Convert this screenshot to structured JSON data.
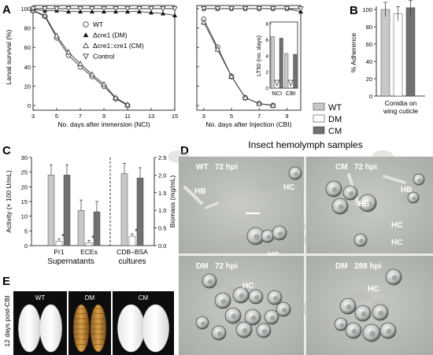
{
  "panels": {
    "A": {
      "letter": "A"
    },
    "B": {
      "letter": "B"
    },
    "C": {
      "letter": "C"
    },
    "D": {
      "letter": "D",
      "title": "Insect hemolymph  samples"
    },
    "E": {
      "letter": "E",
      "side_label": "12 days post-CBI"
    }
  },
  "legend_main": [
    {
      "marker": "circle-open",
      "label": "WT"
    },
    {
      "marker": "triangle-filled",
      "label": "Δcre1 (DM)"
    },
    {
      "marker": "triangle-open",
      "label": "Δcre1::cre1 (CM)"
    },
    {
      "marker": "triangle-down-open",
      "label": "Control"
    }
  ],
  "legend_bars": [
    {
      "label": "WT",
      "color": "#c8c8c8"
    },
    {
      "label": "DM",
      "color": "#ffffff"
    },
    {
      "label": "CM",
      "color": "#707070"
    }
  ],
  "chart_data": [
    {
      "id": "A-left",
      "type": "line",
      "ylabel": "Larval survival (%)",
      "xlabel": "No. days after immersion (NCI)",
      "ylim": [
        0,
        100
      ],
      "xlim": [
        3,
        15
      ],
      "xticks": [
        3,
        5,
        7,
        9,
        11,
        13,
        15
      ],
      "yticks": [
        0,
        20,
        40,
        60,
        80,
        100
      ],
      "series": [
        {
          "name": "WT",
          "marker": "circle-open",
          "x": [
            3,
            4,
            5,
            6,
            7,
            8,
            9,
            10,
            11
          ],
          "y": [
            98,
            92,
            70,
            52,
            40,
            30,
            20,
            7,
            0
          ]
        },
        {
          "name": "Δcre1 (DM)",
          "marker": "triangle-filled",
          "x": [
            3,
            4,
            5,
            6,
            7,
            8,
            9,
            10,
            11,
            12,
            13,
            14,
            15
          ],
          "y": [
            99,
            98,
            98,
            97,
            97,
            97,
            97,
            97,
            97,
            97,
            96,
            95,
            93
          ]
        },
        {
          "name": "Δcre1::cre1 (CM)",
          "marker": "triangle-open",
          "x": [
            3,
            4,
            5,
            6,
            7,
            8,
            9,
            10,
            11
          ],
          "y": [
            98,
            93,
            72,
            55,
            43,
            32,
            22,
            8,
            1
          ]
        },
        {
          "name": "Control",
          "marker": "triangle-down-open",
          "x": [
            3,
            4,
            5,
            6,
            7,
            8,
            9,
            10,
            11,
            12,
            13,
            14,
            15
          ],
          "y": [
            100,
            100,
            100,
            100,
            100,
            100,
            100,
            100,
            100,
            100,
            100,
            100,
            100
          ]
        }
      ]
    },
    {
      "id": "A-right",
      "type": "line",
      "xlabel": "No. days after Injection (CBI)",
      "ylim": [
        0,
        100
      ],
      "xlim": [
        2.5,
        10
      ],
      "xticks": [
        3,
        5,
        7,
        9
      ],
      "series": [
        {
          "name": "WT",
          "marker": "circle-open",
          "x": [
            3,
            4,
            5,
            6,
            7,
            8
          ],
          "y": [
            89,
            60,
            30,
            8,
            2,
            0
          ]
        },
        {
          "name": "Δcre1 (DM)",
          "marker": "triangle-filled",
          "x": [
            3,
            4,
            5,
            6,
            7,
            8,
            9,
            10
          ],
          "y": [
            100,
            100,
            100,
            100,
            100,
            100,
            100,
            97
          ]
        },
        {
          "name": "Δcre1::cre1 (CM)",
          "marker": "triangle-open",
          "x": [
            3,
            4,
            5,
            6,
            7,
            8
          ],
          "y": [
            86,
            58,
            30,
            8,
            2,
            0
          ]
        },
        {
          "name": "Control",
          "marker": "triangle-down-open",
          "x": [
            3,
            4,
            5,
            6,
            7,
            8,
            9,
            10
          ],
          "y": [
            100,
            100,
            100,
            100,
            100,
            100,
            100,
            100
          ]
        }
      ]
    },
    {
      "id": "A-inset",
      "type": "bar",
      "ylabel": "LT50 (no. days)",
      "ylim": [
        0,
        8
      ],
      "yticks": [
        0,
        2,
        4,
        6,
        8
      ],
      "categories": [
        "NCI",
        "CBI"
      ],
      "series": [
        {
          "name": "WT",
          "values": [
            6.4,
            4.3
          ]
        },
        {
          "name": "DM",
          "values": [
            null,
            null
          ],
          "note": "∇"
        },
        {
          "name": "CM",
          "values": [
            6.2,
            4.2
          ]
        }
      ]
    },
    {
      "id": "B",
      "type": "bar",
      "ylabel": "% Adherence",
      "xlabel": "Conidia on wing cuticle",
      "ylim": [
        0,
        100
      ],
      "yticks": [
        0,
        20,
        40,
        60,
        80,
        100
      ],
      "series": [
        {
          "name": "WT",
          "values": [
            100
          ]
        },
        {
          "name": "DM",
          "values": [
            95
          ]
        },
        {
          "name": "CM",
          "values": [
            102
          ]
        }
      ]
    },
    {
      "id": "C",
      "type": "bar",
      "ylabel": "Activity (× 100 U/mL)",
      "ylabel_right": "Biomass (mg/mL)",
      "ylim": [
        0,
        30
      ],
      "yticks": [
        0,
        5,
        10,
        15,
        20,
        25,
        30
      ],
      "ylim_right": [
        0,
        2.5
      ],
      "yticks_right": [
        0.0,
        0.5,
        1.0,
        1.5,
        2.0,
        2.5
      ],
      "categories": [
        "Pr1",
        "ECEs",
        "CDB–BSA"
      ],
      "group_labels": [
        "Supernatants",
        "cultures"
      ],
      "series": [
        {
          "name": "WT",
          "values": [
            24,
            12,
            24.5
          ]
        },
        {
          "name": "DM",
          "values": [
            1.5,
            1,
            3.2
          ]
        },
        {
          "name": "CM",
          "values": [
            24,
            11.5,
            23
          ]
        }
      ],
      "stars": [
        "*",
        "*",
        "*"
      ]
    }
  ],
  "micrographs": [
    {
      "label": "WT",
      "time": "72 hpi",
      "tags": [
        "HB",
        "HC",
        "HC"
      ]
    },
    {
      "label": "CM",
      "time": "72 hpi",
      "tags": [
        "HB",
        "HB",
        "HC",
        "HC"
      ]
    },
    {
      "label": "DM",
      "time": "72 hpi",
      "tags": [
        "HC"
      ]
    },
    {
      "label": "DM",
      "time": "288 hpi",
      "tags": [
        "HC"
      ]
    }
  ],
  "larvae_photos": [
    {
      "label": "WT"
    },
    {
      "label": "DM"
    },
    {
      "label": "CM"
    }
  ]
}
